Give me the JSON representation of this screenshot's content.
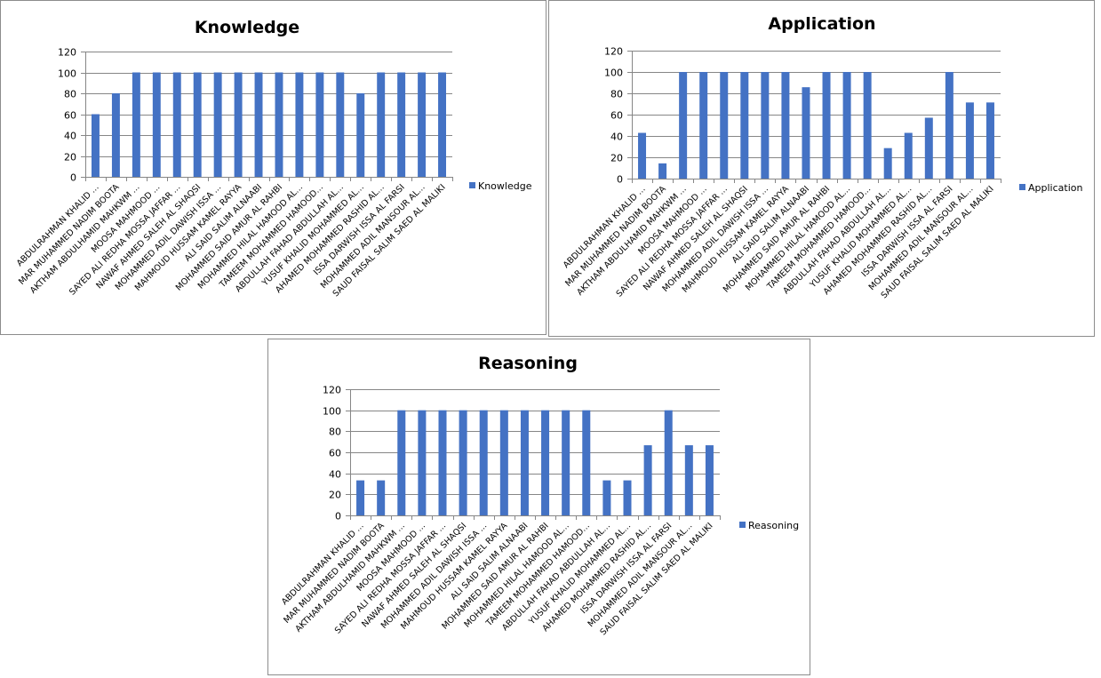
{
  "chart_data": [
    {
      "type": "bar",
      "title": "Knowledge",
      "xlabel": "",
      "ylabel": "",
      "ylim": [
        0,
        120
      ],
      "yticks": [
        0,
        20,
        40,
        60,
        80,
        100,
        120
      ],
      "grid": true,
      "legend": "right",
      "categories": [
        "ABDULRAHMAN KHALID ...",
        "MAR MUHAMMED  NADIM  BOOTA",
        "AKTHAM ABDULHAMID MAHKWM ...",
        "MOOSA MAHMOOD ...",
        "SAYED ALI REDHA  MOSSA JAFFAR ...",
        "NAWAF AHMED SALEH AL SHAQSI",
        "MOHAMMED ADIL DAWISH ISSA ...",
        "MAHMOUD HUSSAM  KAMEL RAYYA",
        "ALI  SAID SALIM ALNAABI",
        "MOHAMMED SAID AMUR AL RAHBI",
        "MOHAMMED HILAL HAMOOD AL...",
        "TAMEEM MOHAMMED  HAMOOD...",
        "ABDULLAH FAHAD ABDULLAH AL...",
        "YUSUF KHALID MOHAMMED  AL...",
        "AHAMED MOHAMMED  RASHID AL...",
        "ISSA DARWISH ISSA AL FARSI",
        "MOHAMMED ADIL MANSOUR AL...",
        "SAUD FAISAL SALIM SAED AL MALIKI"
      ],
      "series": [
        {
          "name": "Knowledge",
          "color": "#4472c4",
          "values": [
            60,
            80,
            100,
            100,
            100,
            100,
            100,
            100,
            100,
            100,
            100,
            100,
            100,
            80,
            100,
            100,
            100,
            100
          ]
        }
      ]
    },
    {
      "type": "bar",
      "title": "Application",
      "xlabel": "",
      "ylabel": "",
      "ylim": [
        0,
        120
      ],
      "yticks": [
        0,
        20,
        40,
        60,
        80,
        100,
        120
      ],
      "grid": true,
      "legend": "right",
      "categories": [
        "ABDULRAHMAN KHALID ...",
        "MAR MUHAMMED  NADIM  BOOTA",
        "AKTHAM ABDULHAMID MAHKWM ...",
        "MOOSA MAHMOOD ...",
        "SAYED ALI REDHA  MOSSA JAFFAR ...",
        "NAWAF AHMED SALEH AL SHAQSI",
        "MOHAMMED ADIL DAWISH ISSA ...",
        "MAHMOUD HUSSAM  KAMEL RAYYA",
        "ALI  SAID SALIM ALNAABI",
        "MOHAMMED SAID AMUR AL RAHBI",
        "MOHAMMED HILAL HAMOOD AL...",
        "TAMEEM MOHAMMED  HAMOOD...",
        "ABDULLAH FAHAD ABDULLAH AL...",
        "YUSUF KHALID MOHAMMED  AL...",
        "AHAMED MOHAMMED  RASHID AL...",
        "ISSA DARWISH ISSA AL FARSI",
        "MOHAMMED ADIL MANSOUR AL...",
        "SAUD FAISAL SALIM SAED AL MALIKI"
      ],
      "series": [
        {
          "name": "Application",
          "color": "#4472c4",
          "values": [
            42.9,
            14.3,
            100,
            100,
            100,
            100,
            100,
            100,
            85.7,
            100,
            100,
            100,
            28.6,
            42.9,
            57.1,
            100,
            71.4,
            71.4
          ]
        }
      ]
    },
    {
      "type": "bar",
      "title": "Reasoning",
      "xlabel": "",
      "ylabel": "",
      "ylim": [
        0,
        120
      ],
      "yticks": [
        0,
        20,
        40,
        60,
        80,
        100,
        120
      ],
      "grid": true,
      "legend": "right",
      "categories": [
        "ABDULRAHMAN KHALID ...",
        "MAR MUHAMMED  NADIM  BOOTA",
        "AKTHAM ABDULHAMID MAHKWM ...",
        "MOOSA MAHMOOD ...",
        "SAYED ALI REDHA  MOSSA JAFFAR ...",
        "NAWAF AHMED SALEH AL SHAQSI",
        "MOHAMMED ADIL DAWISH ISSA ...",
        "MAHMOUD HUSSAM  KAMEL RAYYA",
        "ALI  SAID SALIM ALNAABI",
        "MOHAMMED SAID AMUR AL RAHBI",
        "MOHAMMED HILAL HAMOOD AL...",
        "TAMEEM MOHAMMED  HAMOOD...",
        "ABDULLAH FAHAD ABDULLAH AL...",
        "YUSUF KHALID MOHAMMED  AL...",
        "AHAMED MOHAMMED  RASHID AL...",
        "ISSA DARWISH ISSA AL FARSI",
        "MOHAMMED ADIL MANSOUR AL...",
        "SAUD FAISAL SALIM SAED AL MALIKI"
      ],
      "series": [
        {
          "name": "Reasoning",
          "color": "#4472c4",
          "values": [
            33.3,
            33.3,
            100,
            100,
            100,
            100,
            100,
            100,
            100,
            100,
            100,
            100,
            33.3,
            33.3,
            66.7,
            100,
            66.7,
            66.7
          ]
        }
      ]
    }
  ]
}
